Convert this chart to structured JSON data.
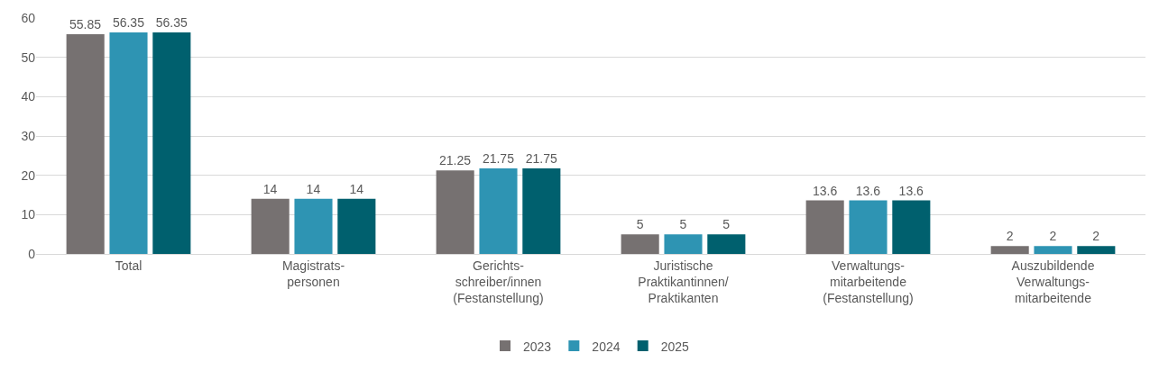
{
  "chart_data": {
    "type": "bar",
    "categories": [
      "Total",
      "Magistrats-\npersonen",
      "Gerichts-\nschreiber/innen\n(Festanstellung)",
      "Juristische\nPraktikantinnen/\nPraktikanten",
      "Verwaltungs-\nmitarbeitende\n(Festanstellung)",
      "Auszubildende\nVerwaltungs-\nmitarbeitende"
    ],
    "series": [
      {
        "name": "2023",
        "color": "#767171",
        "values": [
          55.85,
          14,
          21.25,
          5,
          13.6,
          2
        ]
      },
      {
        "name": "2024",
        "color": "#2e94b3",
        "values": [
          56.35,
          14,
          21.75,
          5,
          13.6,
          2
        ]
      },
      {
        "name": "2025",
        "color": "#00606e",
        "values": [
          56.35,
          14,
          21.75,
          5,
          13.6,
          2
        ]
      }
    ],
    "ylim": [
      0,
      60
    ],
    "yticks": [
      0,
      10,
      20,
      30,
      40,
      50,
      60
    ],
    "grid": "y",
    "legend": "bottom",
    "data_labels": true
  }
}
